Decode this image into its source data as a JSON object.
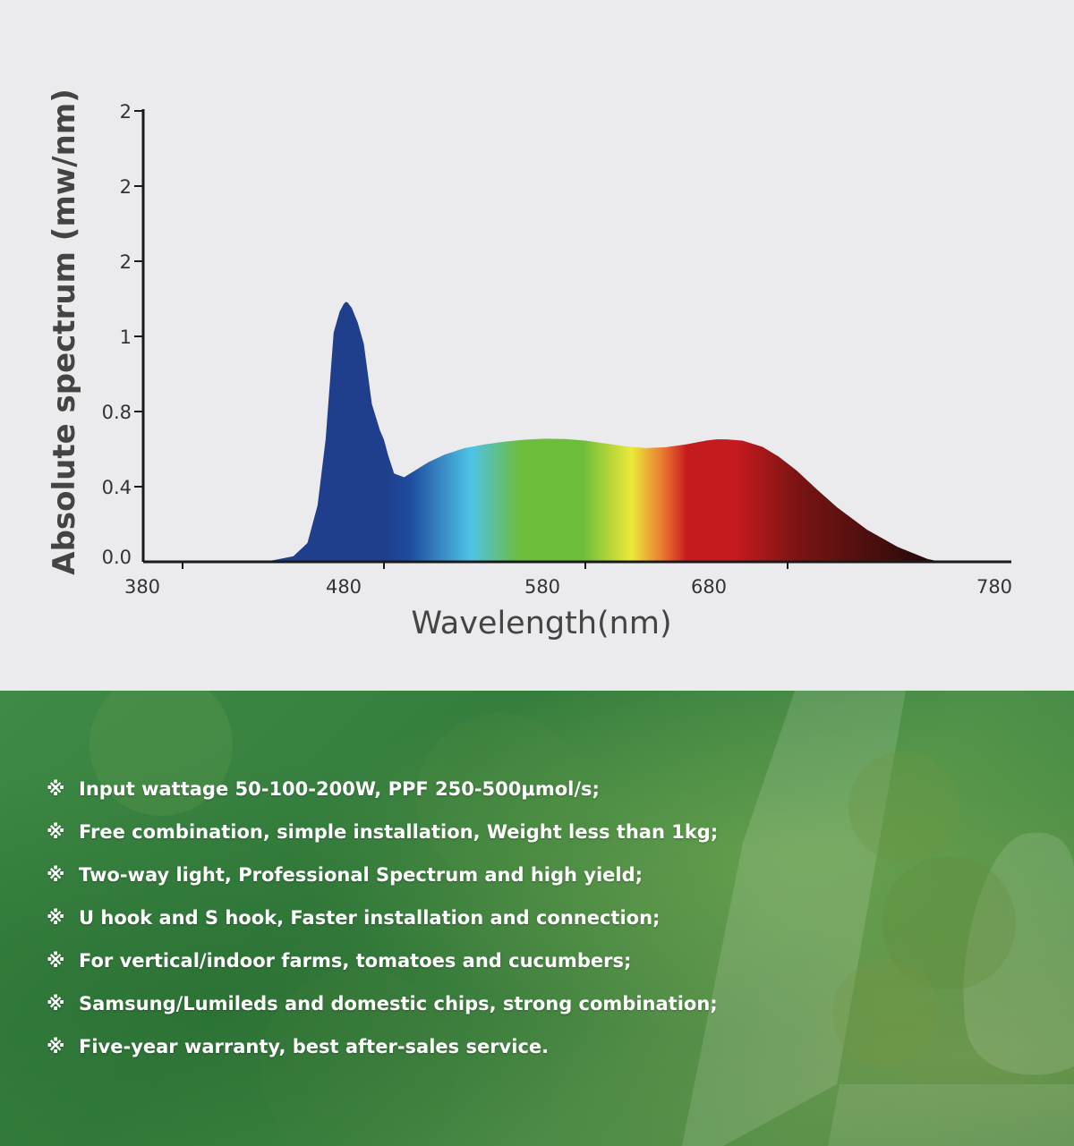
{
  "chart_data": {
    "type": "area",
    "title": "",
    "xlabel": "Wavelength(nm)",
    "ylabel": "Absolute spectrum (mw/nm)",
    "xlim": [
      380,
      780
    ],
    "x_tick_labels": [
      "380",
      "480",
      "580",
      "680",
      "780"
    ],
    "x_tick_values": [
      380,
      480,
      580,
      680,
      780
    ],
    "y_tick_labels": [
      "0.0",
      "0.4",
      "0.8",
      "1",
      "2",
      "2",
      "2"
    ],
    "grid": false,
    "legend": "none",
    "series": [
      {
        "x": [
          380,
          395,
          420,
          437,
          445,
          455,
          462,
          467,
          471,
          475,
          478,
          480,
          481,
          482,
          484,
          487,
          490,
          494,
          498,
          500,
          502,
          505,
          510,
          516,
          522,
          530,
          540,
          550,
          560,
          570,
          580,
          590,
          600,
          610,
          620,
          630,
          640,
          650,
          660,
          665,
          670,
          678,
          688,
          696,
          705,
          715,
          725,
          740,
          755,
          770,
          775,
          780
        ],
        "y": [
          0.0,
          0.0,
          0.0,
          0.0,
          0.008,
          0.03,
          0.1,
          0.3,
          0.65,
          1.05,
          1.33,
          1.43,
          1.46,
          1.45,
          1.38,
          1.18,
          0.98,
          0.82,
          0.7,
          0.65,
          0.57,
          0.47,
          0.45,
          0.49,
          0.53,
          0.57,
          0.605,
          0.625,
          0.64,
          0.65,
          0.655,
          0.654,
          0.645,
          0.63,
          0.615,
          0.605,
          0.61,
          0.625,
          0.645,
          0.652,
          0.652,
          0.645,
          0.612,
          0.56,
          0.485,
          0.385,
          0.29,
          0.17,
          0.08,
          0.015,
          0.004,
          0.0
        ]
      }
    ],
    "colors": {
      "blue_peak": "#1f3f8c",
      "cyan": "#4ec3e6",
      "green": "#6cbd3a",
      "yellow": "#ece93a",
      "orange": "#ea7a30",
      "red": "#c51a1e",
      "dark_red": "#2b0b0b"
    }
  },
  "features": {
    "bullet_mark": "※",
    "items": [
      "Input wattage 50-100-200W, PPF 250-500μmol/s;",
      "Free combination, simple installation, Weight less than 1kg;",
      "Two-way light, Professional Spectrum and high yield;",
      "U hook and S hook, Faster installation and connection;",
      "For vertical/indoor farms, tomatoes and cucumbers;",
      "Samsung/Lumileds and domestic chips, strong combination;",
      "Five-year warranty, best after-sales service."
    ],
    "background_color": "#3f8a46",
    "text_color": "#ffffff"
  }
}
